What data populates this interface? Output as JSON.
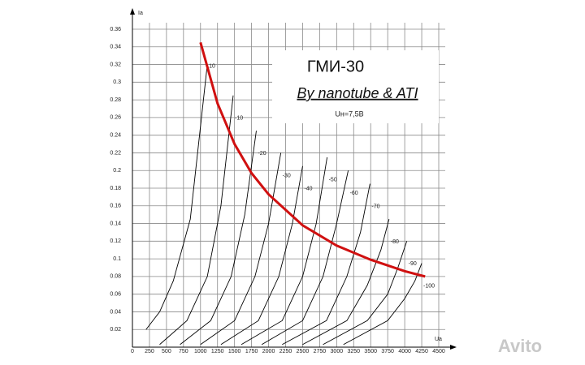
{
  "chart_data": {
    "type": "line",
    "title": "ГМИ-30",
    "subtitle": "By nanotube & ATI",
    "annotation": "Uн=7,5В",
    "y_label": "Ia",
    "x_label": "Ua",
    "watermark": "Avito",
    "xlim": [
      0,
      4500
    ],
    "ylim": [
      0,
      0.36
    ],
    "xticks": [
      0,
      250,
      500,
      750,
      1000,
      1250,
      1500,
      1750,
      2000,
      2250,
      2500,
      2750,
      3000,
      3250,
      3500,
      3750,
      4000,
      4250,
      4500
    ],
    "yticks": [
      0.02,
      0.04,
      0.06,
      0.08,
      0.1,
      0.12,
      0.14,
      0.16,
      0.18,
      0.2,
      0.22,
      0.24,
      0.26,
      0.28,
      0.3,
      0.32,
      0.34,
      0.36
    ],
    "grid": true,
    "series": [
      {
        "name": "10",
        "color": "#000000",
        "x": [
          200,
          400,
          600,
          850,
          1100
        ],
        "values": [
          0.02,
          0.04,
          0.075,
          0.145,
          0.32
        ]
      },
      {
        "name": "-10",
        "color": "#000000",
        "x": [
          400,
          800,
          1100,
          1300,
          1480
        ],
        "values": [
          0.003,
          0.03,
          0.08,
          0.16,
          0.285
        ]
      },
      {
        "name": "-20",
        "color": "#000000",
        "x": [
          700,
          1150,
          1450,
          1650,
          1820
        ],
        "values": [
          0.003,
          0.03,
          0.08,
          0.15,
          0.245
        ]
      },
      {
        "name": "-30",
        "color": "#000000",
        "x": [
          1000,
          1500,
          1800,
          2000,
          2180
        ],
        "values": [
          0.003,
          0.03,
          0.08,
          0.14,
          0.22
        ]
      },
      {
        "name": "-40",
        "color": "#000000",
        "x": [
          1300,
          1850,
          2150,
          2350,
          2500
        ],
        "values": [
          0.003,
          0.03,
          0.08,
          0.14,
          0.205
        ]
      },
      {
        "name": "-50",
        "color": "#000000",
        "x": [
          1600,
          2200,
          2500,
          2700,
          2860
        ],
        "values": [
          0.003,
          0.03,
          0.08,
          0.14,
          0.215
        ]
      },
      {
        "name": "-60",
        "color": "#000000",
        "x": [
          1900,
          2500,
          2800,
          3000,
          3170
        ],
        "values": [
          0.003,
          0.03,
          0.08,
          0.14,
          0.2
        ]
      },
      {
        "name": "-70",
        "color": "#000000",
        "x": [
          2200,
          2850,
          3150,
          3350,
          3490
        ],
        "values": [
          0.003,
          0.03,
          0.08,
          0.13,
          0.185
        ]
      },
      {
        "name": "-80",
        "color": "#000000",
        "x": [
          2500,
          3150,
          3450,
          3650,
          3770
        ],
        "values": [
          0.003,
          0.03,
          0.07,
          0.11,
          0.145
        ]
      },
      {
        "name": "-90",
        "color": "#000000",
        "x": [
          2800,
          3450,
          3750,
          3900,
          4030
        ],
        "values": [
          0.003,
          0.03,
          0.06,
          0.09,
          0.12
        ]
      },
      {
        "name": "-100",
        "color": "#000000",
        "x": [
          3100,
          3750,
          4000,
          4150,
          4250
        ],
        "values": [
          0.003,
          0.03,
          0.055,
          0.075,
          0.095
        ]
      }
    ],
    "load_curve": {
      "color": "#d01010",
      "x": [
        1000,
        1250,
        1500,
        1750,
        2000,
        2500,
        3000,
        3500,
        4000,
        4300
      ],
      "values": [
        0.345,
        0.276,
        0.23,
        0.197,
        0.173,
        0.138,
        0.115,
        0.099,
        0.086,
        0.08
      ]
    }
  }
}
